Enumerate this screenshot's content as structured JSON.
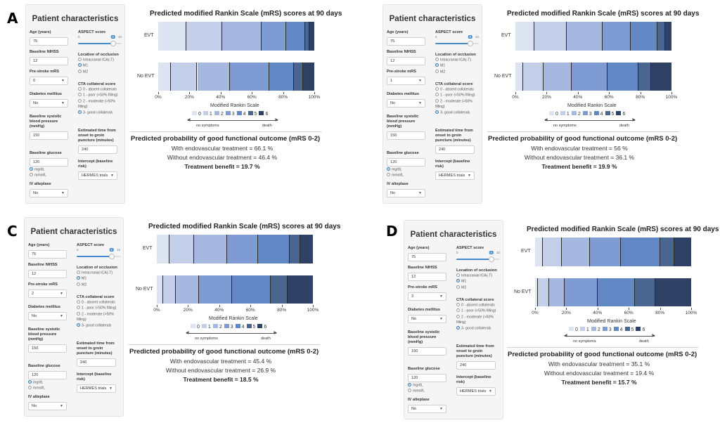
{
  "form_labels": {
    "panel_title": "Patient characteristics",
    "age": "Age (years)",
    "nihss": "Baseline NIHSS",
    "mrs": "Pre-stroke mRS",
    "diabetes": "Diabetes mellitus",
    "sbp": "Baseline systolic blood pressure (mmHg)",
    "glucose": "Baseline glucose",
    "glucose_unit_1": "mg/dL",
    "glucose_unit_2": "mmol/L",
    "alteplase": "IV alteplase",
    "aspect": "ASPECT score",
    "aspect_min": "0",
    "aspect_max": "10",
    "location": "Location of occlusion",
    "loc_ica": "Intracranial ICA(-T)",
    "loc_m1": "M1",
    "loc_m2": "M2",
    "cta": "CTA collateral score",
    "cta_0": "0 - absent collaterals",
    "cta_1": "1 - poor (<50% filling)",
    "cta_2": "2 - moderate (>50% filling)",
    "cta_3": "3- good collaterals",
    "time": "Estimated time from onset to groin puncture (minutes)",
    "intercept": "Intercept (baseline risk)"
  },
  "chart_text": {
    "title": "Predicted modified Rankin Scale (mRS) scores at 90 days",
    "row_evt": "EVT",
    "row_noevt": "No EVT",
    "xlabel": "Modified Rankin Scale",
    "ticks": [
      "0%",
      "20%",
      "40%",
      "60%",
      "80%",
      "100%"
    ],
    "legend": [
      "0",
      "1",
      "2",
      "3",
      "4",
      "5",
      "6"
    ],
    "arrow_left": "no symptoms",
    "arrow_right": "death",
    "prob_title": "Predicted probability of good functional outcome (mRS 0-2)",
    "with_prefix": "With endovascular treatment = ",
    "without_prefix": "Without endovascular treatment = ",
    "benefit_prefix": "Treatment benefit = "
  },
  "colors": {
    "mrs": [
      "#dce3f1",
      "#c3cfe8",
      "#a6b8df",
      "#7f9bd3",
      "#6187c4",
      "#4b6591",
      "#2f4266"
    ],
    "panel_bg": "#f5f5f5",
    "accent": "#428bca"
  },
  "chart_data": [
    {
      "panel": "A",
      "type": "bar",
      "orientation": "horizontal-stacked",
      "title": "Predicted modified Rankin Scale (mRS) scores at 90 days",
      "xlabel": "Modified Rankin Scale",
      "xlim": [
        0,
        100
      ],
      "categories": [
        "EVT",
        "No EVT"
      ],
      "series": [
        {
          "name": "0",
          "values": [
            18,
            8
          ]
        },
        {
          "name": "1",
          "values": [
            23,
            17
          ]
        },
        {
          "name": "2",
          "values": [
            25,
            21
          ]
        },
        {
          "name": "3",
          "values": [
            16,
            25
          ]
        },
        {
          "name": "4",
          "values": [
            12,
            16
          ]
        },
        {
          "name": "5",
          "values": [
            3,
            6
          ]
        },
        {
          "name": "6",
          "values": [
            3,
            7
          ]
        }
      ],
      "inputs": {
        "age": "75",
        "nihss": "12",
        "mrs": "0",
        "diabetes": "No",
        "sbp": "150",
        "glucose": "120",
        "alteplase": "No",
        "aspect": "8",
        "time": "240",
        "intercept": "HERMES trials"
      },
      "prob": {
        "with": "66.1 %",
        "without": "46.4 %",
        "benefit": "19.7 %"
      }
    },
    {
      "panel": "B",
      "type": "bar",
      "orientation": "horizontal-stacked",
      "title": "Predicted modified Rankin Scale (mRS) scores at 90 days",
      "xlabel": "Modified Rankin Scale",
      "xlim": [
        0,
        100
      ],
      "categories": [
        "EVT",
        "No EVT"
      ],
      "series": [
        {
          "name": "0",
          "values": [
            12,
            5
          ]
        },
        {
          "name": "1",
          "values": [
            21,
            13
          ]
        },
        {
          "name": "2",
          "values": [
            23,
            18
          ]
        },
        {
          "name": "3",
          "values": [
            18,
            23
          ]
        },
        {
          "name": "4",
          "values": [
            17,
            20
          ]
        },
        {
          "name": "5",
          "values": [
            5,
            8
          ]
        },
        {
          "name": "6",
          "values": [
            4,
            13
          ]
        }
      ],
      "inputs": {
        "age": "75",
        "nihss": "12",
        "mrs": "1",
        "diabetes": "No",
        "sbp": "150",
        "glucose": "120",
        "alteplase": "No",
        "aspect": "8",
        "time": "240",
        "intercept": "HERMES trials"
      },
      "prob": {
        "with": "56 %",
        "without": "36.1 %",
        "benefit": "19.9 %"
      }
    },
    {
      "panel": "C",
      "type": "bar",
      "orientation": "horizontal-stacked",
      "title": "Predicted modified Rankin Scale (mRS) scores at 90 days",
      "xlabel": "Modified Rankin Scale",
      "xlim": [
        0,
        100
      ],
      "categories": [
        "EVT",
        "No EVT"
      ],
      "series": [
        {
          "name": "0",
          "values": [
            8,
            4
          ]
        },
        {
          "name": "1",
          "values": [
            16,
            8
          ]
        },
        {
          "name": "2",
          "values": [
            21,
            15
          ]
        },
        {
          "name": "3",
          "values": [
            20,
            21
          ]
        },
        {
          "name": "4",
          "values": [
            20,
            25
          ]
        },
        {
          "name": "5",
          "values": [
            7,
            11
          ]
        },
        {
          "name": "6",
          "values": [
            8,
            16
          ]
        }
      ],
      "inputs": {
        "age": "75",
        "nihss": "12",
        "mrs": "2",
        "diabetes": "No",
        "sbp": "150",
        "glucose": "120",
        "alteplase": "No",
        "aspect": "8",
        "time": "240",
        "intercept": "HERMES trials"
      },
      "prob": {
        "with": "45.4 %",
        "without": "26.9 %",
        "benefit": "18.5 %"
      }
    },
    {
      "panel": "D",
      "type": "bar",
      "orientation": "horizontal-stacked",
      "title": "Predicted modified Rankin Scale (mRS) scores at 90 days",
      "xlabel": "Modified Rankin Scale",
      "xlim": [
        0,
        100
      ],
      "categories": [
        "EVT",
        "No EVT"
      ],
      "series": [
        {
          "name": "0",
          "values": [
            5,
            2
          ]
        },
        {
          "name": "1",
          "values": [
            12,
            7
          ]
        },
        {
          "name": "2",
          "values": [
            18,
            10
          ]
        },
        {
          "name": "3",
          "values": [
            20,
            21
          ]
        },
        {
          "name": "4",
          "values": [
            25,
            24
          ]
        },
        {
          "name": "5",
          "values": [
            9,
            13
          ]
        },
        {
          "name": "6",
          "values": [
            11,
            23
          ]
        }
      ],
      "inputs": {
        "age": "75",
        "nihss": "12",
        "mrs": "3",
        "diabetes": "No",
        "sbp": "150",
        "glucose": "120",
        "alteplase": "No",
        "aspect": "8",
        "time": "240",
        "intercept": "HERMES trials"
      },
      "prob": {
        "with": "35.1 %",
        "without": "19.4 %",
        "benefit": "15.7 %"
      }
    }
  ]
}
